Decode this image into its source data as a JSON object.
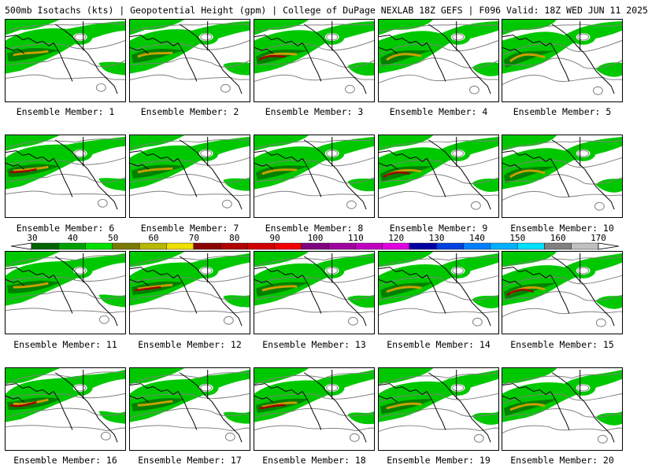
{
  "title": "500mb Isotachs (kts) | Geopotential Height (gpm) | College of DuPage NEXLAB   18Z GEFS | F096 Valid: 18Z WED JUN 11 2025",
  "members": [
    "Ensemble Member: 1",
    "Ensemble Member: 2",
    "Ensemble Member: 3",
    "Ensemble Member: 4",
    "Ensemble Member: 5",
    "Ensemble Member: 6",
    "Ensemble Member: 7",
    "Ensemble Member: 8",
    "Ensemble Member: 9",
    "Ensemble Member: 10",
    "Ensemble Member: 11",
    "Ensemble Member: 12",
    "Ensemble Member: 13",
    "Ensemble Member: 14",
    "Ensemble Member: 15",
    "Ensemble Member: 16",
    "Ensemble Member: 17",
    "Ensemble Member: 18",
    "Ensemble Member: 19",
    "Ensemble Member: 20"
  ],
  "colorbar": {
    "labels": [
      "30",
      "40",
      "50",
      "60",
      "70",
      "80",
      "90",
      "100",
      "110",
      "120",
      "130",
      "140",
      "150",
      "160",
      "170"
    ],
    "colors": [
      "#006400",
      "#00a000",
      "#00e000",
      "#7a7a00",
      "#b8b800",
      "#f0e000",
      "#8b0000",
      "#b00000",
      "#d00000",
      "#f00000",
      "#800080",
      "#a000a0",
      "#c000c0",
      "#e000e0",
      "#0000a0",
      "#0040e0",
      "#0080ff",
      "#00b0ff",
      "#00e0ff",
      "#808080",
      "#c0c0c0"
    ]
  },
  "map_colors": {
    "isotach_light": "#00c800",
    "isotach_mid": "#008000",
    "jet_core": "#c8a000",
    "jet_max": "#a00000",
    "height_contour": "#808080",
    "coastline": "#000000"
  }
}
